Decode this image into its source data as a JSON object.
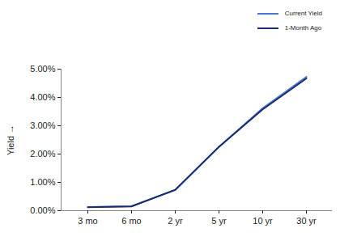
{
  "chart_data": {
    "type": "line",
    "ylabel": "Yield",
    "categories": [
      "3 mo",
      "6 mo",
      "2 yr",
      "5 yr",
      "10 yr",
      "30 yr"
    ],
    "series": [
      {
        "name": "Current Yield",
        "color": "#4a78d4",
        "values": [
          0.13,
          0.16,
          0.73,
          2.25,
          3.62,
          4.73
        ]
      },
      {
        "name": "1-Month Ago",
        "color": "#1c2c6a",
        "values": [
          0.12,
          0.15,
          0.74,
          2.26,
          3.58,
          4.67
        ]
      }
    ],
    "ylim": [
      0,
      5
    ],
    "yticks": [
      {
        "value": 0,
        "label": "0.00%"
      },
      {
        "value": 1,
        "label": "1.00%"
      },
      {
        "value": 2,
        "label": "2.00%"
      },
      {
        "value": 3,
        "label": "3.00%"
      },
      {
        "value": 4,
        "label": "4.00%"
      },
      {
        "value": 5,
        "label": "5.00%"
      }
    ],
    "legend": "top-right"
  }
}
